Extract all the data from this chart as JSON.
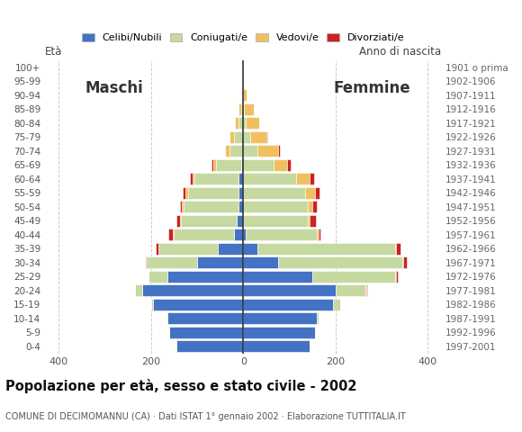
{
  "age_groups": [
    "0-4",
    "5-9",
    "10-14",
    "15-19",
    "20-24",
    "25-29",
    "30-34",
    "35-39",
    "40-44",
    "45-49",
    "50-54",
    "55-59",
    "60-64",
    "65-69",
    "70-74",
    "75-79",
    "80-84",
    "85-89",
    "90-94",
    "95-99",
    "100+"
  ],
  "birth_years": [
    "1997-2001",
    "1992-1996",
    "1987-1991",
    "1982-1986",
    "1977-1981",
    "1972-1976",
    "1967-1971",
    "1962-1966",
    "1957-1961",
    "1952-1956",
    "1947-1951",
    "1942-1946",
    "1937-1941",
    "1932-1936",
    "1927-1931",
    "1922-1926",
    "1917-1921",
    "1912-1916",
    "1907-1911",
    "1902-1906",
    "1901 o prima"
  ],
  "males": {
    "celibe": [
      145,
      160,
      165,
      195,
      220,
      165,
      100,
      55,
      20,
      15,
      10,
      10,
      10,
      5,
      0,
      0,
      0,
      0,
      0,
      0,
      0
    ],
    "coniugato": [
      0,
      0,
      2,
      5,
      15,
      40,
      110,
      130,
      130,
      120,
      120,
      110,
      95,
      55,
      30,
      20,
      10,
      5,
      2,
      0,
      0
    ],
    "vedovo": [
      0,
      0,
      0,
      0,
      0,
      0,
      0,
      0,
      2,
      2,
      3,
      5,
      5,
      5,
      10,
      10,
      8,
      5,
      2,
      0,
      0
    ],
    "divorziato": [
      0,
      0,
      0,
      0,
      0,
      0,
      2,
      5,
      10,
      8,
      5,
      7,
      5,
      3,
      0,
      0,
      0,
      0,
      0,
      0,
      0
    ]
  },
  "females": {
    "nubile": [
      145,
      155,
      160,
      195,
      200,
      150,
      75,
      30,
      5,
      0,
      0,
      0,
      0,
      0,
      0,
      0,
      0,
      0,
      0,
      0,
      0
    ],
    "coniugato": [
      0,
      0,
      3,
      15,
      65,
      180,
      270,
      300,
      155,
      140,
      140,
      135,
      115,
      65,
      30,
      15,
      5,
      2,
      0,
      0,
      0
    ],
    "vedovo": [
      0,
      0,
      0,
      0,
      2,
      2,
      2,
      2,
      3,
      5,
      10,
      20,
      30,
      30,
      45,
      35,
      30,
      20,
      8,
      2,
      0
    ],
    "divorziato": [
      0,
      0,
      0,
      0,
      2,
      3,
      8,
      10,
      5,
      12,
      10,
      10,
      8,
      8,
      5,
      3,
      0,
      0,
      0,
      0,
      0
    ]
  },
  "colors": {
    "celibe": "#4472c4",
    "coniugato": "#c5d9a0",
    "vedovo": "#f0c060",
    "divorziato": "#cc2222"
  },
  "legend_labels": [
    "Celibi/Nubili",
    "Coniugati/e",
    "Vedovi/e",
    "Divorziati/e"
  ],
  "xlim": 430,
  "title": "Popolazione per età, sesso e stato civile - 2002",
  "subtitle": "COMUNE DI DECIMOMANNU (CA) · Dati ISTAT 1° gennaio 2002 · Elaborazione TUTTITALIA.IT",
  "ylabel_eta": "Età",
  "ylabel_anno": "Anno di nascita",
  "label_maschi": "Maschi",
  "label_femmine": "Femmine",
  "bg_color": "#ffffff",
  "grid_color": "#cccccc",
  "bar_height": 0.82
}
